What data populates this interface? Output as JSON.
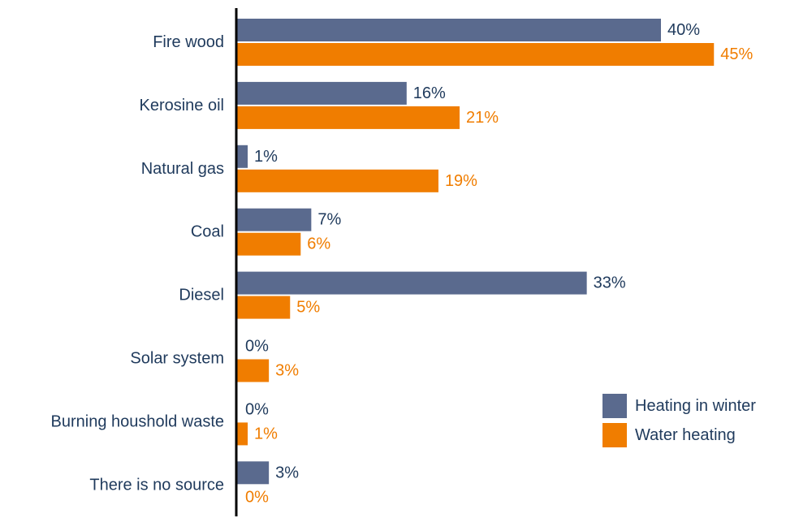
{
  "chart_data": {
    "type": "bar",
    "orientation": "horizontal",
    "categories": [
      "Fire wood",
      "Kerosine oil",
      "Natural gas",
      "Coal",
      "Diesel",
      "Solar system",
      "Burning houshold waste",
      "There is no source"
    ],
    "series": [
      {
        "name": "Heating in winter",
        "color": "#5a6a8e",
        "label_color": "#1f3a5c",
        "values": [
          40,
          16,
          1,
          7,
          33,
          0,
          0,
          3
        ]
      },
      {
        "name": "Water heating",
        "color": "#f07d00",
        "label_color": "#f07d00",
        "values": [
          45,
          21,
          19,
          6,
          5,
          3,
          1,
          0
        ]
      }
    ],
    "value_suffix": "%",
    "xlim": [
      0,
      50
    ],
    "grid": false,
    "legend_position": "right"
  }
}
